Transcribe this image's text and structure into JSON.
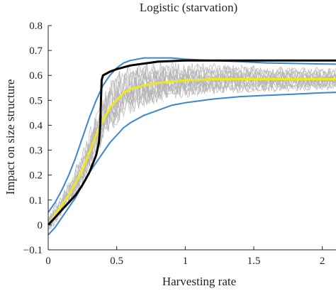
{
  "chart_data": {
    "type": "line",
    "title": "Logistic (starvation)",
    "xlabel": "Harvesting rate",
    "ylabel": "Impact on size structure",
    "xlim": [
      0,
      2.1
    ],
    "ylim": [
      -0.1,
      0.8
    ],
    "x_ticks": [
      0,
      0.5,
      1,
      1.5,
      2
    ],
    "x_tick_labels": [
      "0",
      "0.5",
      "1",
      "1.5",
      "2"
    ],
    "y_ticks": [
      -0.1,
      0,
      0.1,
      0.2,
      0.3,
      0.4,
      0.5,
      0.6,
      0.7,
      0.8
    ],
    "y_tick_labels": [
      "−0.1",
      "0",
      "0.1",
      "0.2",
      "0.3",
      "0.4",
      "0.5",
      "0.6",
      "0.7",
      "0.8"
    ],
    "grid": false,
    "colors": {
      "traces": "#b4b4b4",
      "bands": "#3a86d0",
      "mean": "#f0e81e",
      "deterministic": "#000000",
      "axis": "#222222"
    },
    "series": [
      {
        "role": "upper-band",
        "color": "#3a86d0",
        "x": [
          0,
          0.05,
          0.1,
          0.15,
          0.2,
          0.25,
          0.3,
          0.35,
          0.4,
          0.45,
          0.5,
          0.55,
          0.6,
          0.7,
          0.8,
          0.9,
          1.0,
          1.2,
          1.4,
          1.6,
          1.8,
          2.0,
          2.1
        ],
        "y": [
          0.05,
          0.09,
          0.14,
          0.2,
          0.27,
          0.35,
          0.43,
          0.5,
          0.56,
          0.6,
          0.63,
          0.65,
          0.66,
          0.67,
          0.67,
          0.67,
          0.665,
          0.66,
          0.655,
          0.65,
          0.648,
          0.646,
          0.645
        ]
      },
      {
        "role": "lower-band",
        "color": "#3a86d0",
        "x": [
          0,
          0.05,
          0.1,
          0.15,
          0.2,
          0.25,
          0.3,
          0.35,
          0.4,
          0.45,
          0.5,
          0.55,
          0.6,
          0.7,
          0.8,
          0.9,
          1.0,
          1.2,
          1.4,
          1.6,
          1.8,
          2.0,
          2.1
        ],
        "y": [
          -0.04,
          -0.01,
          0.03,
          0.07,
          0.11,
          0.16,
          0.21,
          0.25,
          0.29,
          0.33,
          0.36,
          0.39,
          0.41,
          0.44,
          0.46,
          0.48,
          0.49,
          0.505,
          0.515,
          0.52,
          0.525,
          0.53,
          0.532
        ]
      },
      {
        "role": "mean",
        "color": "#f0e81e",
        "x": [
          0,
          0.05,
          0.1,
          0.15,
          0.2,
          0.25,
          0.3,
          0.35,
          0.4,
          0.45,
          0.5,
          0.55,
          0.6,
          0.7,
          0.8,
          0.9,
          1.0,
          1.2,
          1.4,
          1.6,
          1.8,
          2.0,
          2.1
        ],
        "y": [
          0.0,
          0.04,
          0.08,
          0.12,
          0.17,
          0.22,
          0.29,
          0.36,
          0.42,
          0.47,
          0.5,
          0.53,
          0.545,
          0.56,
          0.57,
          0.575,
          0.58,
          0.585,
          0.585,
          0.585,
          0.585,
          0.585,
          0.585
        ]
      },
      {
        "role": "deterministic",
        "color": "#000000",
        "x": [
          0,
          0.05,
          0.1,
          0.15,
          0.2,
          0.25,
          0.3,
          0.35,
          0.37,
          0.38,
          0.385,
          0.39,
          0.4,
          0.45,
          0.5,
          0.6,
          0.8,
          1.0,
          1.5,
          2.0,
          2.1
        ],
        "y": [
          0.0,
          0.03,
          0.06,
          0.09,
          0.12,
          0.16,
          0.21,
          0.28,
          0.33,
          0.4,
          0.5,
          0.58,
          0.6,
          0.615,
          0.625,
          0.64,
          0.655,
          0.66,
          0.66,
          0.66,
          0.66
        ]
      }
    ],
    "traces": {
      "count": 14,
      "color": "#b4b4b4",
      "x_step": 0.01,
      "description_of_shape": "noisy stochastic trajectories spread between the two blue bands"
    }
  }
}
